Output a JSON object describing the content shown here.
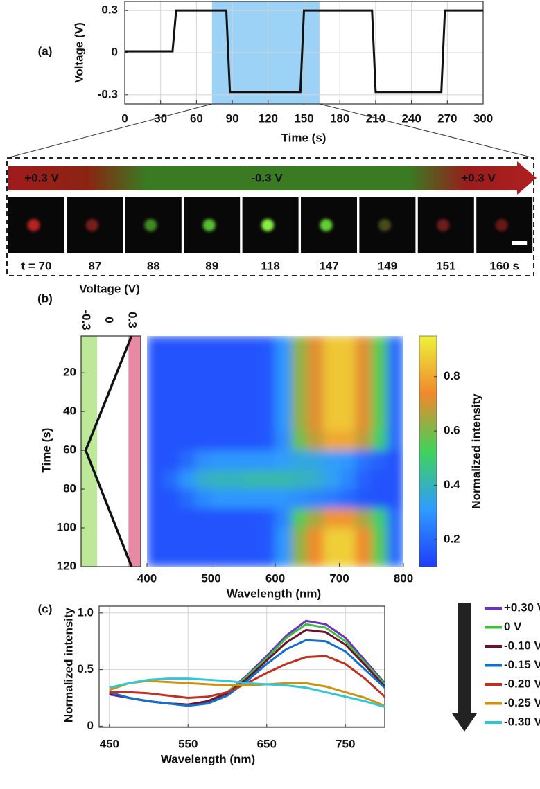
{
  "chart_data": [
    {
      "type": "line",
      "label": "(a)",
      "xlabel": "Time (s)",
      "ylabel": "Voltage (V)",
      "x": [
        0,
        40,
        43,
        85,
        88,
        147,
        150,
        207,
        210,
        265,
        268,
        300
      ],
      "values": [
        0.01,
        0.01,
        0.3,
        0.3,
        -0.28,
        -0.28,
        0.3,
        0.3,
        -0.28,
        -0.28,
        0.3,
        0.3
      ],
      "color": "#111111",
      "xlim": [
        0,
        300
      ],
      "xticks": [
        0,
        30,
        60,
        90,
        120,
        150,
        180,
        210,
        240,
        270,
        300
      ],
      "ylim": [
        -0.365,
        0.365
      ],
      "yticks": [
        -0.3,
        0,
        0.3
      ],
      "grid": true,
      "highlight": {
        "from": 73,
        "to": 163,
        "color": "#5ab4f0"
      }
    },
    {
      "type": "line",
      "label": "(b)",
      "xlabel": "Voltage (V)",
      "ylabel": "Time (s)",
      "value_axis": "x",
      "y": [
        1,
        60,
        120
      ],
      "values": [
        0.3,
        -0.3,
        0.3
      ],
      "color": "#111111",
      "xlim": [
        -0.36,
        0.42
      ],
      "xticks": [
        -0.3,
        0,
        0.3
      ],
      "ylim": [
        1,
        120
      ],
      "yinvert": true,
      "yticks": [
        20,
        40,
        60,
        80,
        100,
        120
      ],
      "bands": [
        {
          "from": -0.36,
          "to": -0.15,
          "color": "#bde89a"
        },
        {
          "from": 0.26,
          "to": 0.42,
          "color": "#e98aa4"
        }
      ]
    },
    {
      "type": "heatmap",
      "xlabel": "Wavelength (nm)",
      "xbins": [
        400,
        425,
        450,
        475,
        500,
        525,
        550,
        575,
        600,
        625,
        650,
        675,
        700,
        725,
        750,
        775,
        800
      ],
      "ybins": [
        1,
        10,
        20,
        30,
        40,
        50,
        60,
        70,
        80,
        90,
        100,
        110,
        120
      ],
      "values": [
        [
          0.15,
          0.15,
          0.15,
          0.15,
          0.15,
          0.15,
          0.15,
          0.16,
          0.3,
          0.62,
          0.72,
          0.86,
          0.86,
          0.72,
          0.55,
          0.2
        ],
        [
          0.15,
          0.15,
          0.15,
          0.15,
          0.15,
          0.15,
          0.15,
          0.16,
          0.3,
          0.62,
          0.72,
          0.86,
          0.86,
          0.72,
          0.55,
          0.2
        ],
        [
          0.15,
          0.15,
          0.15,
          0.15,
          0.15,
          0.15,
          0.15,
          0.16,
          0.3,
          0.62,
          0.72,
          0.86,
          0.86,
          0.72,
          0.55,
          0.2
        ],
        [
          0.15,
          0.15,
          0.15,
          0.15,
          0.15,
          0.15,
          0.15,
          0.16,
          0.3,
          0.62,
          0.72,
          0.86,
          0.86,
          0.72,
          0.55,
          0.2
        ],
        [
          0.15,
          0.15,
          0.15,
          0.15,
          0.15,
          0.15,
          0.15,
          0.16,
          0.3,
          0.62,
          0.72,
          0.86,
          0.86,
          0.72,
          0.55,
          0.2
        ],
        [
          0.15,
          0.15,
          0.15,
          0.15,
          0.15,
          0.15,
          0.15,
          0.16,
          0.28,
          0.58,
          0.68,
          0.8,
          0.8,
          0.68,
          0.5,
          0.2
        ],
        [
          0.15,
          0.15,
          0.2,
          0.28,
          0.3,
          0.3,
          0.3,
          0.3,
          0.32,
          0.35,
          0.35,
          0.32,
          0.3,
          0.22,
          0.18,
          0.15
        ],
        [
          0.15,
          0.2,
          0.3,
          0.38,
          0.4,
          0.4,
          0.42,
          0.42,
          0.42,
          0.4,
          0.38,
          0.33,
          0.27,
          0.18,
          0.15,
          0.15
        ],
        [
          0.15,
          0.15,
          0.2,
          0.27,
          0.3,
          0.3,
          0.3,
          0.3,
          0.3,
          0.28,
          0.26,
          0.24,
          0.2,
          0.16,
          0.15,
          0.15
        ],
        [
          0.15,
          0.15,
          0.15,
          0.15,
          0.15,
          0.15,
          0.15,
          0.16,
          0.26,
          0.55,
          0.65,
          0.76,
          0.76,
          0.65,
          0.5,
          0.2
        ],
        [
          0.15,
          0.15,
          0.15,
          0.15,
          0.15,
          0.15,
          0.15,
          0.16,
          0.3,
          0.62,
          0.74,
          0.88,
          0.88,
          0.74,
          0.55,
          0.2
        ],
        [
          0.15,
          0.15,
          0.15,
          0.15,
          0.15,
          0.15,
          0.15,
          0.16,
          0.3,
          0.62,
          0.74,
          0.88,
          0.88,
          0.74,
          0.55,
          0.2
        ]
      ],
      "xlim": [
        400,
        800
      ],
      "xticks": [
        400,
        500,
        600,
        700,
        800
      ],
      "ylim": [
        1,
        120
      ],
      "yinvert": true,
      "colorbar": {
        "label": "Normalized intensity",
        "clim": [
          0.1,
          0.95
        ],
        "ticks": [
          0.2,
          0.4,
          0.6,
          0.8
        ],
        "colors": [
          "#1f3dfb",
          "#2f9cff",
          "#3fd35a",
          "#f0892c",
          "#eef23c"
        ]
      }
    },
    {
      "type": "line",
      "label": "(c)",
      "xlabel": "Wavelength (nm)",
      "ylabel": "Normalized intensity",
      "x": [
        450,
        475,
        500,
        525,
        550,
        575,
        600,
        625,
        650,
        675,
        700,
        725,
        750,
        775,
        800
      ],
      "series": [
        {
          "name": "+0.30 V",
          "color": "#7030c0",
          "values": [
            0.28,
            0.25,
            0.22,
            0.2,
            0.19,
            0.22,
            0.3,
            0.45,
            0.62,
            0.8,
            0.93,
            0.9,
            0.78,
            0.58,
            0.38
          ]
        },
        {
          "name": "0 V",
          "color": "#3cbf3c",
          "values": [
            0.3,
            0.25,
            0.22,
            0.2,
            0.19,
            0.22,
            0.3,
            0.44,
            0.6,
            0.78,
            0.9,
            0.87,
            0.75,
            0.56,
            0.37
          ]
        },
        {
          "name": "-0.10 V",
          "color": "#701030",
          "values": [
            0.29,
            0.25,
            0.22,
            0.2,
            0.19,
            0.22,
            0.29,
            0.42,
            0.58,
            0.74,
            0.85,
            0.83,
            0.72,
            0.54,
            0.35
          ]
        },
        {
          "name": "-0.15 V",
          "color": "#1070d0",
          "values": [
            0.3,
            0.25,
            0.22,
            0.2,
            0.18,
            0.2,
            0.27,
            0.4,
            0.55,
            0.68,
            0.76,
            0.75,
            0.66,
            0.5,
            0.34
          ]
        },
        {
          "name": "-0.20 V",
          "color": "#c03020",
          "values": [
            0.3,
            0.3,
            0.29,
            0.27,
            0.25,
            0.26,
            0.3,
            0.38,
            0.47,
            0.55,
            0.61,
            0.62,
            0.55,
            0.42,
            0.26
          ]
        },
        {
          "name": "-0.25 V",
          "color": "#d09010",
          "values": [
            0.32,
            0.38,
            0.4,
            0.39,
            0.38,
            0.37,
            0.36,
            0.36,
            0.37,
            0.38,
            0.38,
            0.35,
            0.3,
            0.25,
            0.18
          ]
        },
        {
          "name": "-0.30 V",
          "color": "#30c8d8",
          "values": [
            0.34,
            0.38,
            0.41,
            0.42,
            0.42,
            0.41,
            0.4,
            0.38,
            0.37,
            0.36,
            0.34,
            0.3,
            0.26,
            0.22,
            0.17
          ]
        }
      ],
      "xlim": [
        437,
        800
      ],
      "xticks": [
        450,
        550,
        650,
        750
      ],
      "ylim": [
        -0.01,
        1.06
      ],
      "yticks": [
        0,
        0.5,
        {
          "value": 1,
          "label": "1.0"
        }
      ],
      "grid": true,
      "legend": "right"
    }
  ],
  "strip": {
    "arrow_labels": [
      "+0.3 V",
      "-0.3 V",
      "+0.3 V"
    ],
    "frames": [
      {
        "label": "t = 70",
        "color": "#b82222"
      },
      {
        "label": "87",
        "color": "#7a1a1a"
      },
      {
        "label": "88",
        "color": "#3f8a22"
      },
      {
        "label": "89",
        "color": "#55c030"
      },
      {
        "label": "118",
        "color": "#86f040"
      },
      {
        "label": "147",
        "color": "#60d030"
      },
      {
        "label": "149",
        "color": "#4a4a1a"
      },
      {
        "label": "151",
        "color": "#6e1a1a"
      },
      {
        "label": "160 s",
        "color": "#6a1818"
      }
    ]
  }
}
